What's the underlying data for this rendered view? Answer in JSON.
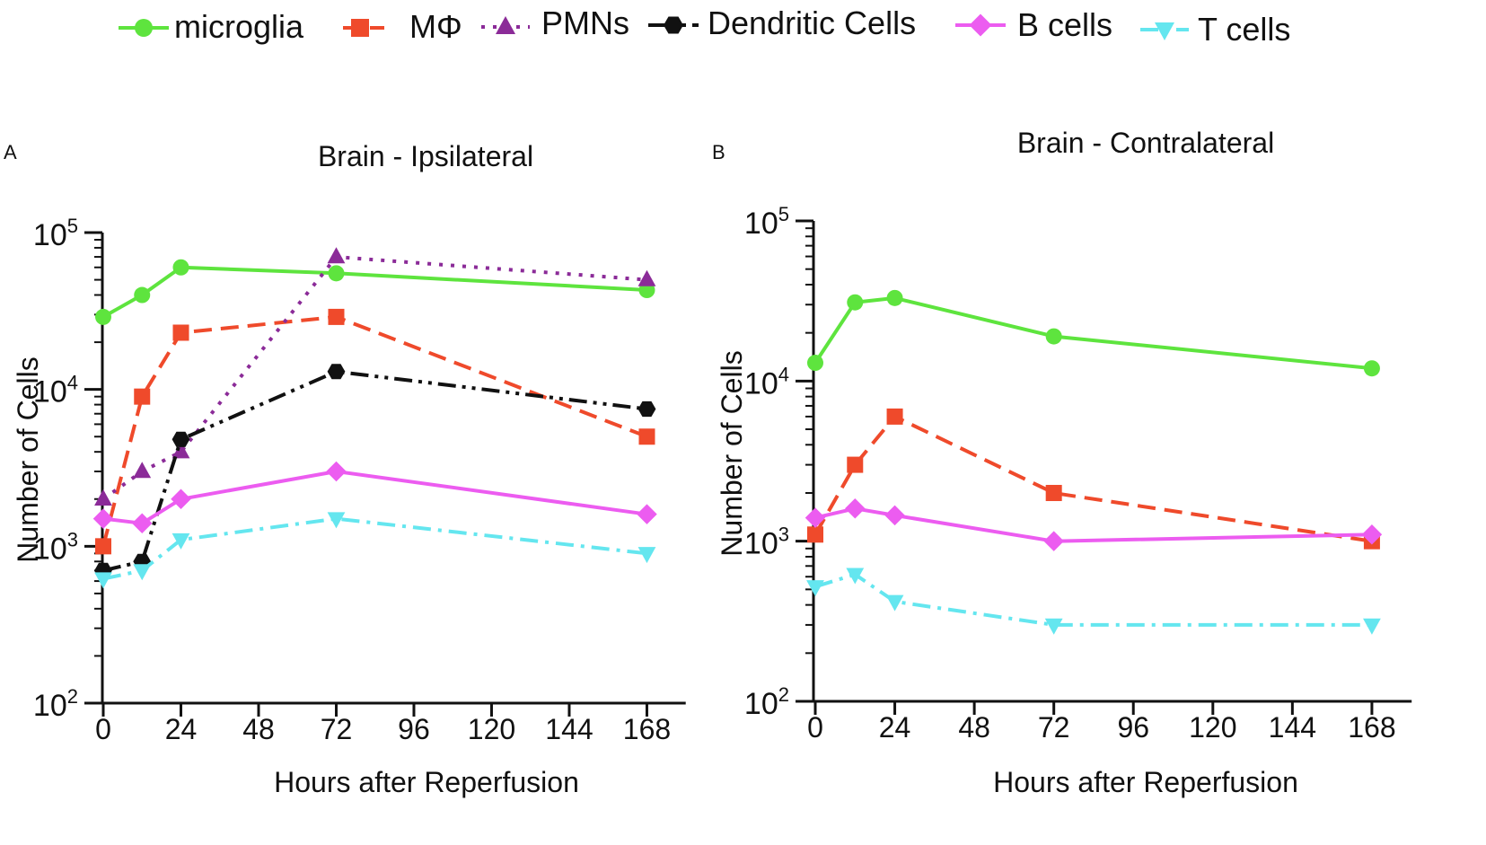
{
  "chart_data": [
    {
      "panel_label": "A",
      "type": "line",
      "title": "Brain - Ipsilateral",
      "xlabel": "Hours after Reperfusion",
      "ylabel": "Number of Cells",
      "xlim": [
        0,
        180
      ],
      "ylim": [
        100,
        100000
      ],
      "yscale": "log",
      "xticks": [
        "0",
        "24",
        "48",
        "72",
        "96",
        "120",
        "144",
        "168"
      ],
      "ytick_base": "10",
      "ytick_exponents": [
        "2",
        "3",
        "4",
        "5"
      ],
      "grid": false,
      "series": [
        {
          "name": "microglia",
          "x": [
            0,
            12,
            24,
            72,
            168
          ],
          "values": [
            29000,
            40000,
            60000,
            55000,
            43000
          ]
        },
        {
          "name": "MΦ",
          "x": [
            0,
            12,
            24,
            72,
            168
          ],
          "values": [
            1000,
            9000,
            23000,
            29000,
            5000
          ]
        },
        {
          "name": "PMNs",
          "x": [
            0,
            12,
            24,
            72,
            168
          ],
          "values": [
            2000,
            3000,
            4000,
            70000,
            50000
          ]
        },
        {
          "name": "Dendritic Cells",
          "x": [
            0,
            12,
            24,
            72,
            168
          ],
          "values": [
            700,
            800,
            4800,
            13000,
            7500
          ]
        },
        {
          "name": "B cells",
          "x": [
            0,
            12,
            24,
            72,
            168
          ],
          "values": [
            1500,
            1400,
            2000,
            3000,
            1600
          ]
        },
        {
          "name": "T cells",
          "x": [
            0,
            12,
            24,
            72,
            168
          ],
          "values": [
            620,
            700,
            1100,
            1500,
            900
          ]
        }
      ]
    },
    {
      "panel_label": "B",
      "type": "line",
      "title": "Brain - Contralateral",
      "xlabel": "Hours after Reperfusion",
      "ylabel": "Number of Cells",
      "xlim": [
        0,
        180
      ],
      "ylim": [
        100,
        100000
      ],
      "yscale": "log",
      "xticks": [
        "0",
        "24",
        "48",
        "72",
        "96",
        "120",
        "144",
        "168"
      ],
      "ytick_base": "10",
      "ytick_exponents": [
        "2",
        "3",
        "4",
        "5"
      ],
      "grid": false,
      "series": [
        {
          "name": "microglia",
          "x": [
            0,
            12,
            24,
            72,
            168
          ],
          "values": [
            13000,
            31000,
            33000,
            19000,
            12000
          ]
        },
        {
          "name": "MΦ",
          "x": [
            0,
            12,
            24,
            72,
            168
          ],
          "values": [
            1100,
            3000,
            6000,
            2000,
            1000
          ]
        },
        {
          "name": "B cells",
          "x": [
            0,
            12,
            24,
            72,
            168
          ],
          "values": [
            1400,
            1600,
            1450,
            1000,
            1100
          ]
        },
        {
          "name": "T cells",
          "x": [
            0,
            12,
            24,
            72,
            168
          ],
          "values": [
            520,
            620,
            420,
            300,
            300
          ]
        }
      ]
    }
  ],
  "legend": {
    "position": "top",
    "entries": [
      {
        "name": "microglia",
        "color": "#5ee43e",
        "marker": "circle",
        "dash": "solid"
      },
      {
        "name": "MΦ",
        "color": "#ef4a2b",
        "marker": "square",
        "dash": "dashed"
      },
      {
        "name": "PMNs",
        "color": "#8b2b98",
        "marker": "triangle-up",
        "dash": "dotted"
      },
      {
        "name": "Dendritic Cells",
        "color": "#111111",
        "marker": "hexagon",
        "dash": "dash-dot-dot"
      },
      {
        "name": "B cells",
        "color": "#ec5cf0",
        "marker": "diamond",
        "dash": "solid"
      },
      {
        "name": "T cells",
        "color": "#64e6ef",
        "marker": "triangle-down",
        "dash": "dash-dot"
      }
    ]
  }
}
